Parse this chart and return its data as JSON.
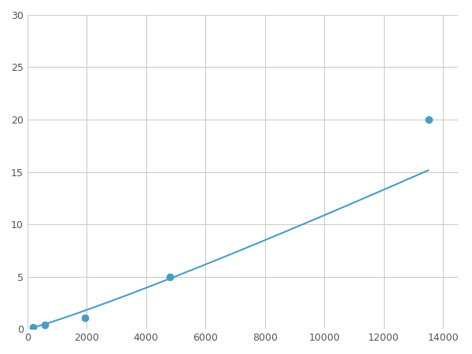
{
  "x": [
    200,
    600,
    1950,
    4800,
    13500
  ],
  "y": [
    0.2,
    0.4,
    1.1,
    5.0,
    20.0
  ],
  "line_color": "#4a9cc4",
  "marker_color": "#4a9cc4",
  "marker_size": 6,
  "xlim": [
    0,
    14500
  ],
  "ylim": [
    0,
    30
  ],
  "xticks": [
    0,
    2000,
    4000,
    6000,
    8000,
    10000,
    12000,
    14000
  ],
  "yticks": [
    0,
    5,
    10,
    15,
    20,
    25,
    30
  ],
  "grid": true,
  "background_color": "#ffffff",
  "figsize": [
    6.0,
    4.5
  ],
  "dpi": 100
}
